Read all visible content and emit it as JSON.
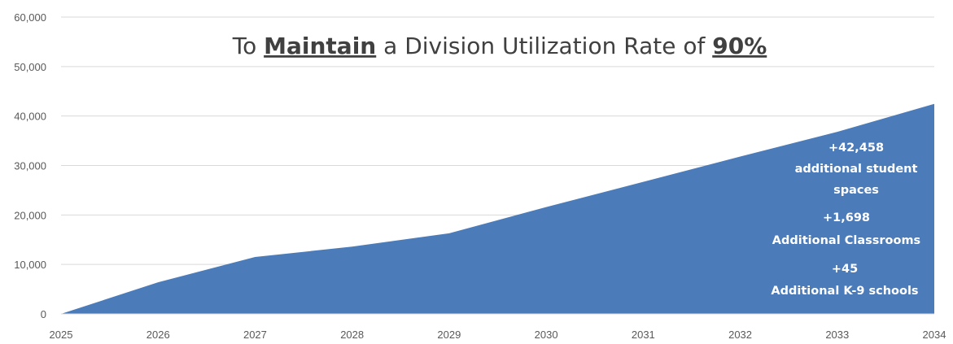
{
  "chart_data": {
    "type": "area",
    "title": {
      "prefix": "To ",
      "emphasis_1": "Maintain",
      "middle": " a Division Utilization Rate of ",
      "emphasis_2": "90%"
    },
    "x": [
      "2025",
      "2026",
      "2027",
      "2028",
      "2029",
      "2030",
      "2031",
      "2032",
      "2033",
      "2034"
    ],
    "series": [
      {
        "values": [
          0,
          6400,
          11500,
          13600,
          16300,
          21600,
          26700,
          31800,
          36800,
          42458
        ]
      }
    ],
    "ylim": [
      0,
      60000
    ],
    "yticks": [
      "0",
      "10,000",
      "20,000",
      "30,000",
      "40,000",
      "50,000",
      "60,000"
    ],
    "grid": true,
    "fill_color": "#4b7bb8",
    "annotations": [
      {
        "lines": [
          "+42,458",
          "additional student",
          "spaces"
        ]
      },
      {
        "lines": [
          "+1,698",
          "Additional Classrooms"
        ]
      },
      {
        "lines": [
          "+45",
          "Additional K-9 schools"
        ]
      }
    ]
  }
}
